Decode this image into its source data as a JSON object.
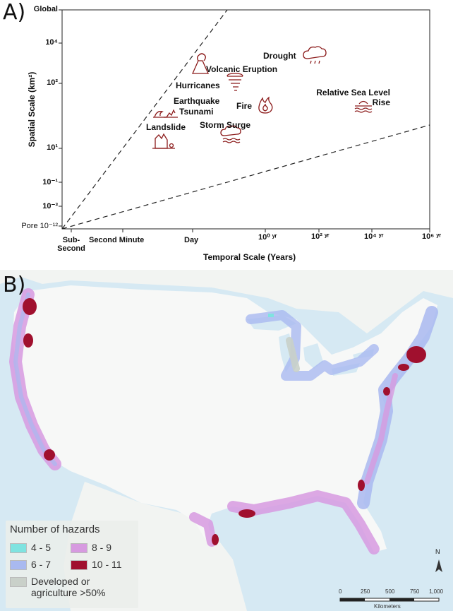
{
  "panel_a": {
    "label": "A)",
    "y_axis_title": "Spatial Scale (km²)",
    "x_axis_title": "Temporal Scale (Years)",
    "y_ticks": [
      {
        "id": "global",
        "text": "Global"
      },
      {
        "id": "e4",
        "text": "10⁴"
      },
      {
        "id": "e2",
        "text": "10²"
      },
      {
        "id": "e1",
        "text": "10¹"
      },
      {
        "id": "em1",
        "text": "10⁻¹"
      },
      {
        "id": "em3",
        "text": "10⁻³"
      },
      {
        "id": "em12",
        "text": "Pore 10⁻¹²"
      }
    ],
    "x_ticks": [
      {
        "id": "subsecond",
        "text": "Sub-\nSecond"
      },
      {
        "id": "second-minute",
        "text": "Second Minute"
      },
      {
        "id": "day",
        "text": "Day"
      },
      {
        "id": "e0",
        "text": "10⁰ ʸʳ"
      },
      {
        "id": "e2",
        "text": "10² ʸʳ"
      },
      {
        "id": "e4",
        "text": "10⁴ ʸʳ"
      },
      {
        "id": "e6",
        "text": "10⁶ ʸʳ"
      }
    ],
    "hazards": [
      {
        "id": "drought",
        "text": "Drought",
        "icon": "cloud-rain-icon"
      },
      {
        "id": "volcanic-eruption",
        "text": "Volcanic Eruption",
        "icon": "volcano-icon"
      },
      {
        "id": "hurricanes",
        "text": "Hurricanes",
        "icon": "hurricane-icon"
      },
      {
        "id": "earthquake",
        "text": "Earthquake",
        "icon": "earthquake-icon"
      },
      {
        "id": "tsunami",
        "text": "Tsunami",
        "icon": "tsunami-icon"
      },
      {
        "id": "fire",
        "text": "Fire",
        "icon": "fire-icon"
      },
      {
        "id": "relative-sea-level-rise",
        "text": "Relative Sea Level\nRise",
        "icon": "sea-level-icon"
      },
      {
        "id": "storm-surge",
        "text": "Storm Surge",
        "icon": "storm-surge-icon"
      },
      {
        "id": "landslide",
        "text": "Landslide",
        "icon": "landslide-icon"
      }
    ],
    "icon_color": "#8b1a1a"
  },
  "panel_b": {
    "label": "B)",
    "legend": {
      "title": "Number of hazards",
      "items": [
        {
          "id": "4-5",
          "text": "4 - 5",
          "color": "#7fe3e0"
        },
        {
          "id": "8-9",
          "text": "8 - 9",
          "color": "#d79ae0"
        },
        {
          "id": "6-7",
          "text": "6 - 7",
          "color": "#a9b9f0"
        },
        {
          "id": "10-11",
          "text": "10 - 11",
          "color": "#a0102e"
        },
        {
          "id": "developed",
          "text": "Developed or\nagriculture >50%",
          "color": "#c9d0c9"
        }
      ]
    },
    "scale_bar": {
      "ticks": [
        "0",
        "250",
        "500",
        "750",
        "1,000"
      ],
      "unit": "Kilometers"
    },
    "north_label": "N",
    "colors": {
      "ocean": "#d6e9f3",
      "land": "#f7f8f7",
      "canada": "#f2f4f2"
    }
  }
}
